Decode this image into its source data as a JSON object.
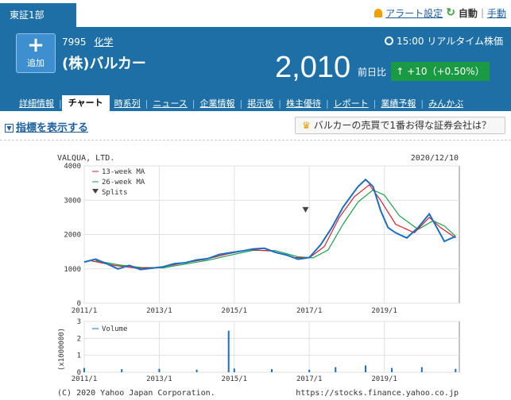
{
  "market_tab": "東証1部",
  "toplinks": {
    "alert": "アラート設定",
    "auto": "自動",
    "sep": "|",
    "manual": "手動"
  },
  "header": {
    "add_label": "追加",
    "code": "7995",
    "industry": "化学",
    "company": "(株)バルカー",
    "realtime": "15:00 リアルタイム株価",
    "price": "2,010",
    "change_label": "前日比",
    "change": "+10（+0.50%）"
  },
  "tabs": [
    "詳細情報",
    "チャート",
    "時系列",
    "ニュース",
    "企業情報",
    "掲示板",
    "株主優待",
    "レポート",
    "業績予報",
    "みんかぶ"
  ],
  "indicator_link": "指標を表示する",
  "promo": "バルカーの売買で1番お得な証券会社は？",
  "colors": {
    "header": "#1d6fa5",
    "up": "#1a9a43",
    "ma13": "#d8202a",
    "ma26": "#1aa04a",
    "candle": "#1b6ec2"
  },
  "chart_data": {
    "type": "line",
    "title": "VALQUA, LTD.",
    "date": "2020/12/10",
    "legend": [
      "13-week MA",
      "26-week MA",
      "Splits"
    ],
    "volume_legend": "Volume",
    "volume_ylabel": "(x1000000)",
    "copyright": "(C) 2020 Yahoo Japan Corporation.",
    "url": "https://stocks.finance.yahoo.co.jp",
    "xticks": [
      "2011/1",
      "2013/1",
      "2015/1",
      "2017/1",
      "2019/1"
    ],
    "yticks": [
      "0",
      "1000",
      "2000",
      "3000",
      "4000"
    ],
    "vol_yticks": [
      "0",
      "1",
      "2",
      "3"
    ],
    "ylim": [
      0,
      4000
    ],
    "vol_ylim": [
      0,
      3
    ],
    "price_series": [
      [
        2011.0,
        1200
      ],
      [
        2011.3,
        1280
      ],
      [
        2011.6,
        1150
      ],
      [
        2011.9,
        1000
      ],
      [
        2012.2,
        1100
      ],
      [
        2012.5,
        980
      ],
      [
        2012.8,
        1020
      ],
      [
        2013.1,
        1060
      ],
      [
        2013.4,
        1150
      ],
      [
        2013.7,
        1180
      ],
      [
        2014.0,
        1260
      ],
      [
        2014.3,
        1300
      ],
      [
        2014.6,
        1420
      ],
      [
        2014.9,
        1470
      ],
      [
        2015.2,
        1520
      ],
      [
        2015.5,
        1580
      ],
      [
        2015.8,
        1600
      ],
      [
        2016.1,
        1480
      ],
      [
        2016.4,
        1400
      ],
      [
        2016.7,
        1280
      ],
      [
        2017.0,
        1330
      ],
      [
        2017.3,
        1700
      ],
      [
        2017.6,
        2200
      ],
      [
        2017.9,
        2800
      ],
      [
        2018.1,
        3100
      ],
      [
        2018.3,
        3400
      ],
      [
        2018.5,
        3600
      ],
      [
        2018.7,
        3400
      ],
      [
        2018.9,
        2700
      ],
      [
        2019.1,
        2200
      ],
      [
        2019.3,
        2050
      ],
      [
        2019.6,
        1900
      ],
      [
        2019.9,
        2200
      ],
      [
        2020.2,
        2600
      ],
      [
        2020.4,
        2200
      ],
      [
        2020.6,
        1800
      ],
      [
        2020.9,
        1950
      ]
    ],
    "ma13": [
      [
        2011.2,
        1230
      ],
      [
        2011.8,
        1100
      ],
      [
        2012.4,
        1020
      ],
      [
        2013.0,
        1040
      ],
      [
        2013.6,
        1160
      ],
      [
        2014.2,
        1270
      ],
      [
        2014.8,
        1430
      ],
      [
        2015.4,
        1560
      ],
      [
        2016.0,
        1520
      ],
      [
        2016.6,
        1330
      ],
      [
        2017.0,
        1320
      ],
      [
        2017.4,
        1650
      ],
      [
        2017.8,
        2500
      ],
      [
        2018.2,
        3100
      ],
      [
        2018.6,
        3450
      ],
      [
        2018.9,
        3000
      ],
      [
        2019.3,
        2300
      ],
      [
        2019.8,
        2050
      ],
      [
        2020.2,
        2500
      ],
      [
        2020.5,
        2200
      ],
      [
        2020.9,
        1900
      ]
    ],
    "ma26": [
      [
        2011.3,
        1240
      ],
      [
        2011.9,
        1120
      ],
      [
        2012.5,
        1040
      ],
      [
        2013.1,
        1030
      ],
      [
        2013.7,
        1140
      ],
      [
        2014.3,
        1250
      ],
      [
        2014.9,
        1400
      ],
      [
        2015.5,
        1540
      ],
      [
        2016.1,
        1530
      ],
      [
        2016.7,
        1350
      ],
      [
        2017.1,
        1320
      ],
      [
        2017.5,
        1550
      ],
      [
        2017.9,
        2300
      ],
      [
        2018.3,
        2950
      ],
      [
        2018.7,
        3300
      ],
      [
        2019.0,
        3150
      ],
      [
        2019.4,
        2550
      ],
      [
        2019.9,
        2150
      ],
      [
        2020.3,
        2400
      ],
      [
        2020.6,
        2250
      ],
      [
        2020.9,
        1950
      ]
    ],
    "split": {
      "x": 2016.9,
      "y": 2800
    },
    "volume_series": [
      [
        2011.0,
        0.25
      ],
      [
        2012.0,
        0.18
      ],
      [
        2013.0,
        0.2
      ],
      [
        2014.0,
        0.15
      ],
      [
        2014.85,
        2.45
      ],
      [
        2015.0,
        0.22
      ],
      [
        2016.0,
        0.18
      ],
      [
        2017.0,
        0.15
      ],
      [
        2017.7,
        0.3
      ],
      [
        2018.5,
        0.4
      ],
      [
        2019.2,
        0.25
      ],
      [
        2020.0,
        0.3
      ],
      [
        2020.9,
        0.2
      ]
    ]
  }
}
